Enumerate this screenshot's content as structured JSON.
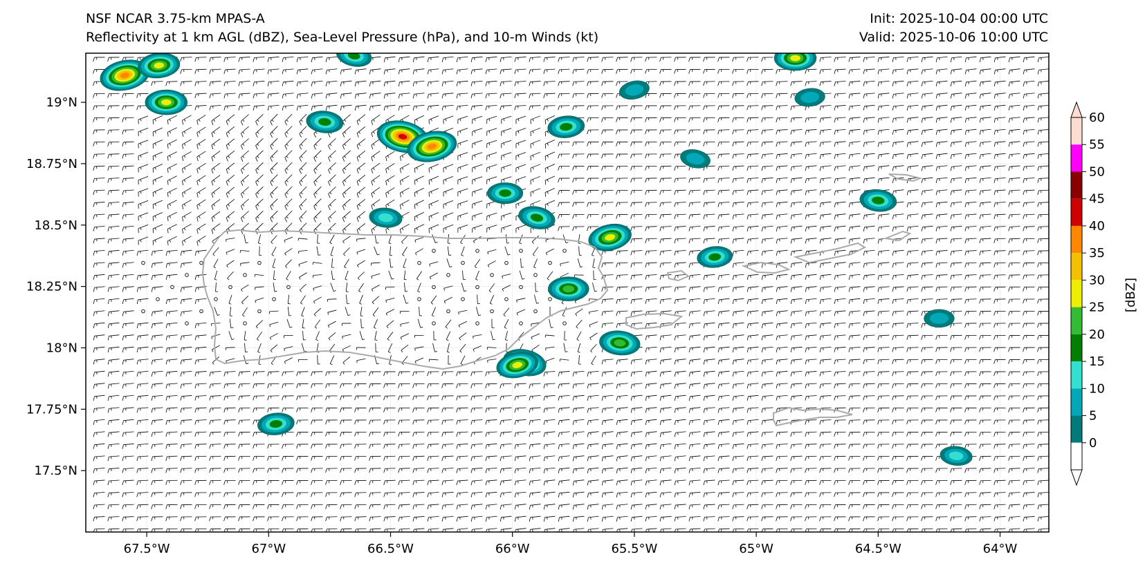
{
  "header": {
    "model": "NSF NCAR 3.75-km MPAS-A",
    "fields": "Reflectivity at 1 km AGL (dBZ), Sea-Level Pressure (hPa), and 10-m Winds (kt)",
    "init": "Init: 2025-10-04 00:00 UTC",
    "valid": "Valid: 2025-10-06 10:00 UTC"
  },
  "map": {
    "region": "Puerto Rico and Virgin Islands",
    "lon_range": [
      -67.75,
      -63.8
    ],
    "lat_range": [
      17.25,
      19.2
    ],
    "lon_ticks": [
      "67.5°W",
      "67°W",
      "66.5°W",
      "66°W",
      "65.5°W",
      "65°W",
      "64.5°W",
      "64°W"
    ],
    "lat_ticks": [
      "19°N",
      "18.75°N",
      "18.5°N",
      "18.25°N",
      "18°N",
      "17.75°N",
      "17.5°N"
    ],
    "coastline_color": "#aaaaaa",
    "wind_barb_color": "#000000",
    "wind_direction": "easterly, ~10-15 kt over ocean; light/calm over interior of Puerto Rico"
  },
  "colorbar": {
    "label": "[dBZ]",
    "ticks": [
      "0",
      "5",
      "10",
      "15",
      "20",
      "25",
      "30",
      "35",
      "40",
      "45",
      "50",
      "55",
      "60"
    ],
    "colors": [
      "#007b7b",
      "#00a8b8",
      "#33e0d0",
      "#007f00",
      "#33bb33",
      "#eeee00",
      "#f5c000",
      "#ff8800",
      "#d00000",
      "#8a0000",
      "#ff00ff",
      "#ffdcd0"
    ]
  },
  "chart_data": {
    "type": "map",
    "title": "NSF NCAR 3.75-km MPAS-A",
    "subtitle": "Reflectivity at 1 km AGL (dBZ), Sea-Level Pressure (hPa), and 10-m Winds (kt)",
    "xlabel": "",
    "ylabel": "",
    "xlim": [
      -67.75,
      -63.8
    ],
    "ylim": [
      17.25,
      19.2
    ],
    "cells": [
      {
        "lon": -67.59,
        "lat": 19.11,
        "max_dbz": 42
      },
      {
        "lon": -67.45,
        "lat": 19.15,
        "max_dbz": 30
      },
      {
        "lon": -67.42,
        "lat": 19.0,
        "max_dbz": 30
      },
      {
        "lon": -66.77,
        "lat": 18.92,
        "max_dbz": 22
      },
      {
        "lon": -66.45,
        "lat": 18.86,
        "max_dbz": 45
      },
      {
        "lon": -66.33,
        "lat": 18.82,
        "max_dbz": 42
      },
      {
        "lon": -65.78,
        "lat": 18.9,
        "max_dbz": 22
      },
      {
        "lon": -66.03,
        "lat": 18.63,
        "max_dbz": 20
      },
      {
        "lon": -66.52,
        "lat": 18.53,
        "max_dbz": 16
      },
      {
        "lon": -65.9,
        "lat": 18.53,
        "max_dbz": 22
      },
      {
        "lon": -65.6,
        "lat": 18.45,
        "max_dbz": 32
      },
      {
        "lon": -65.17,
        "lat": 18.37,
        "max_dbz": 20
      },
      {
        "lon": -65.77,
        "lat": 18.24,
        "max_dbz": 28
      },
      {
        "lon": -65.56,
        "lat": 18.02,
        "max_dbz": 28
      },
      {
        "lon": -65.95,
        "lat": 17.94,
        "max_dbz": 32
      },
      {
        "lon": -65.98,
        "lat": 17.93,
        "max_dbz": 30
      },
      {
        "lon": -66.97,
        "lat": 17.69,
        "max_dbz": 22
      },
      {
        "lon": -64.84,
        "lat": 19.18,
        "max_dbz": 30
      },
      {
        "lon": -64.5,
        "lat": 18.6,
        "max_dbz": 22
      },
      {
        "lon": -65.25,
        "lat": 18.77,
        "max_dbz": 12
      },
      {
        "lon": -65.5,
        "lat": 19.05,
        "max_dbz": 12
      },
      {
        "lon": -64.78,
        "lat": 19.02,
        "max_dbz": 12
      },
      {
        "lon": -64.25,
        "lat": 18.12,
        "max_dbz": 12
      },
      {
        "lon": -64.18,
        "lat": 17.56,
        "max_dbz": 15
      },
      {
        "lon": -66.65,
        "lat": 19.19,
        "max_dbz": 20
      }
    ]
  }
}
